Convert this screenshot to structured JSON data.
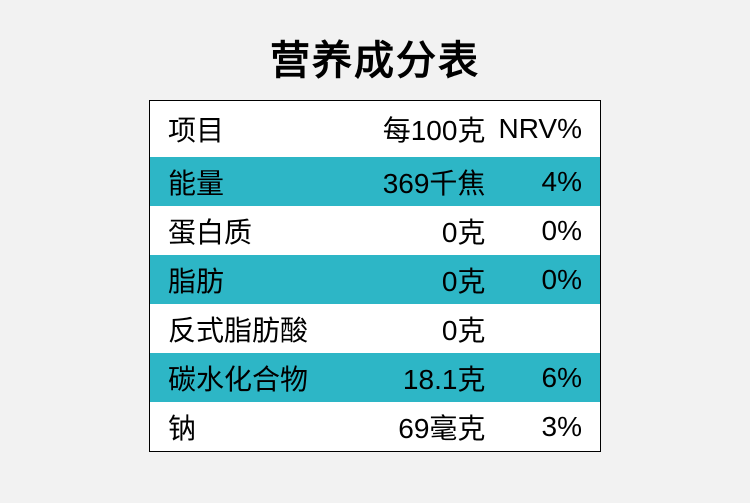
{
  "title": "营养成分表",
  "table": {
    "stripe_color": "#2db6c6",
    "plain_color": "#ffffff",
    "text_color": "#000000",
    "border_color": "#000000",
    "header": {
      "c1": "项目",
      "c2": "每100克",
      "c3": "NRV%"
    },
    "rows": [
      {
        "c1": "能量",
        "c2": "369千焦",
        "c3": "4%",
        "stripe": true
      },
      {
        "c1": "蛋白质",
        "c2": "0克",
        "c3": "0%",
        "stripe": false
      },
      {
        "c1": "脂肪",
        "c2": "0克",
        "c3": "0%",
        "stripe": true
      },
      {
        "c1": "反式脂肪酸",
        "c2": "0克",
        "c3": "",
        "stripe": false
      },
      {
        "c1": "碳水化合物",
        "c2": "18.1克",
        "c3": "6%",
        "stripe": true
      },
      {
        "c1": "钠",
        "c2": "69毫克",
        "c3": "3%",
        "stripe": false
      }
    ]
  }
}
